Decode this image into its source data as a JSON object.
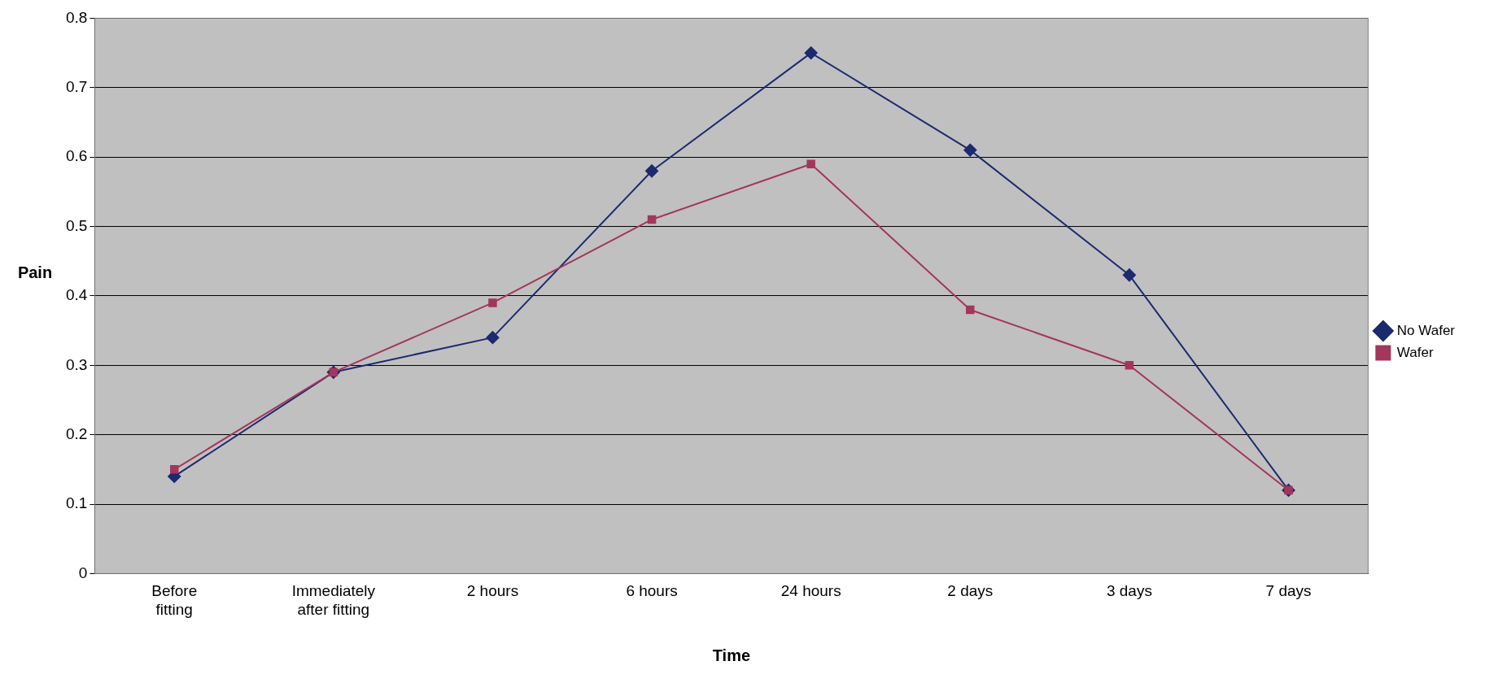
{
  "chart_data": {
    "type": "line",
    "xlabel": "Time",
    "ylabel": "Pain",
    "categories": [
      "Before fitting",
      "Immediately after fitting",
      "2 hours",
      "6 hours",
      "24 hours",
      "2 days",
      "3 days",
      "7 days"
    ],
    "series": [
      {
        "name": "No Wafer",
        "color": "#1c2a70",
        "marker": "diamond",
        "values": [
          0.14,
          0.29,
          0.34,
          0.58,
          0.75,
          0.61,
          0.43,
          0.12
        ]
      },
      {
        "name": "Wafer",
        "color": "#a3365c",
        "marker": "square",
        "values": [
          0.15,
          0.29,
          0.39,
          0.51,
          0.59,
          0.38,
          0.3,
          0.12
        ]
      }
    ],
    "ylim": [
      0,
      0.8
    ],
    "yticks": [
      0,
      0.1,
      0.2,
      0.3,
      0.4,
      0.5,
      0.6,
      0.7,
      0.8
    ],
    "grid": "y",
    "legend": "right"
  }
}
